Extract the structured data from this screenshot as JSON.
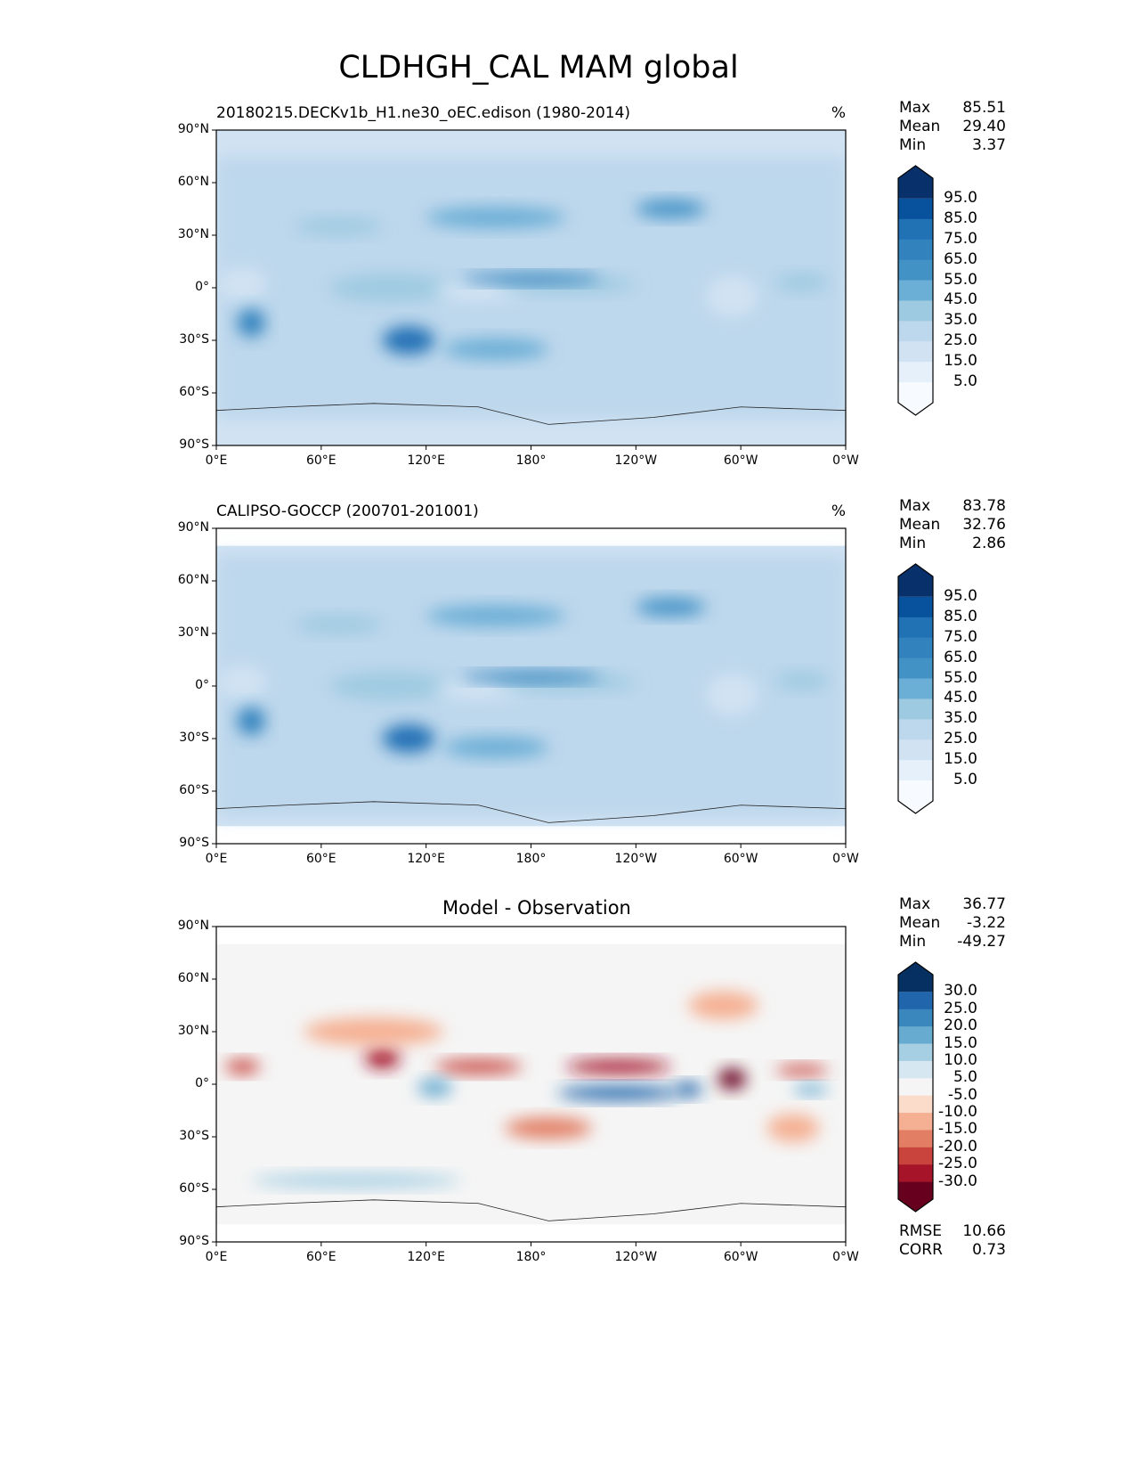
{
  "chart_data": {
    "type": "heatmap",
    "title": "CLDHGH_CAL MAM global",
    "lat_ticks": [
      "90°N",
      "60°N",
      "30°N",
      "0°",
      "30°S",
      "60°S",
      "90°S"
    ],
    "lon_ticks": [
      "0°E",
      "60°E",
      "120°E",
      "180°",
      "120°W",
      "60°W",
      "0°W"
    ],
    "panels": [
      {
        "title": "20180215.DECKv1b_H1.ne30_oEC.edison (1980-2014)",
        "units": "%",
        "stats": [
          {
            "label": "Max",
            "value": "85.51"
          },
          {
            "label": "Mean",
            "value": "29.40"
          },
          {
            "label": "Min",
            "value": "3.37"
          }
        ],
        "colorbar": {
          "levels": [
            "95.0",
            "85.0",
            "75.0",
            "65.0",
            "55.0",
            "45.0",
            "35.0",
            "25.0",
            "15.0",
            "5.0"
          ],
          "colors": [
            "#08306b",
            "#08519c",
            "#2171b5",
            "#3182bd",
            "#4292c6",
            "#6baed6",
            "#9ecae1",
            "#bdd7ec",
            "#d1e3f3",
            "#e6f0fa",
            "#f7fbff"
          ]
        }
      },
      {
        "title": "CALIPSO-GOCCP (200701-201001)",
        "units": "%",
        "stats": [
          {
            "label": "Max",
            "value": "83.78"
          },
          {
            "label": "Mean",
            "value": "32.76"
          },
          {
            "label": "Min",
            "value": "2.86"
          }
        ],
        "colorbar": {
          "levels": [
            "95.0",
            "85.0",
            "75.0",
            "65.0",
            "55.0",
            "45.0",
            "35.0",
            "25.0",
            "15.0",
            "5.0"
          ],
          "colors": [
            "#08306b",
            "#08519c",
            "#2171b5",
            "#3182bd",
            "#4292c6",
            "#6baed6",
            "#9ecae1",
            "#bdd7ec",
            "#d1e3f3",
            "#e6f0fa",
            "#f7fbff"
          ]
        }
      },
      {
        "title": "Model - Observation",
        "units": "",
        "stats": [
          {
            "label": "Max",
            "value": "36.77"
          },
          {
            "label": "Mean",
            "value": "-3.22"
          },
          {
            "label": "Min",
            "value": "-49.27"
          }
        ],
        "colorbar": {
          "levels": [
            "30.0",
            "25.0",
            "20.0",
            "15.0",
            "10.0",
            "5.0",
            "-5.0",
            "-10.0",
            "-15.0",
            "-20.0",
            "-25.0",
            "-30.0"
          ],
          "colors": [
            "#053061",
            "#2166ac",
            "#3a87bd",
            "#68abd0",
            "#a6cfe3",
            "#d6e7f1",
            "#f5f5f5",
            "#fbdccb",
            "#f5b093",
            "#e27e64",
            "#c8443c",
            "#a51429",
            "#67001f"
          ]
        },
        "metrics": [
          {
            "label": "RMSE",
            "value": "10.66"
          },
          {
            "label": "CORR",
            "value": "0.73"
          }
        ]
      }
    ]
  }
}
